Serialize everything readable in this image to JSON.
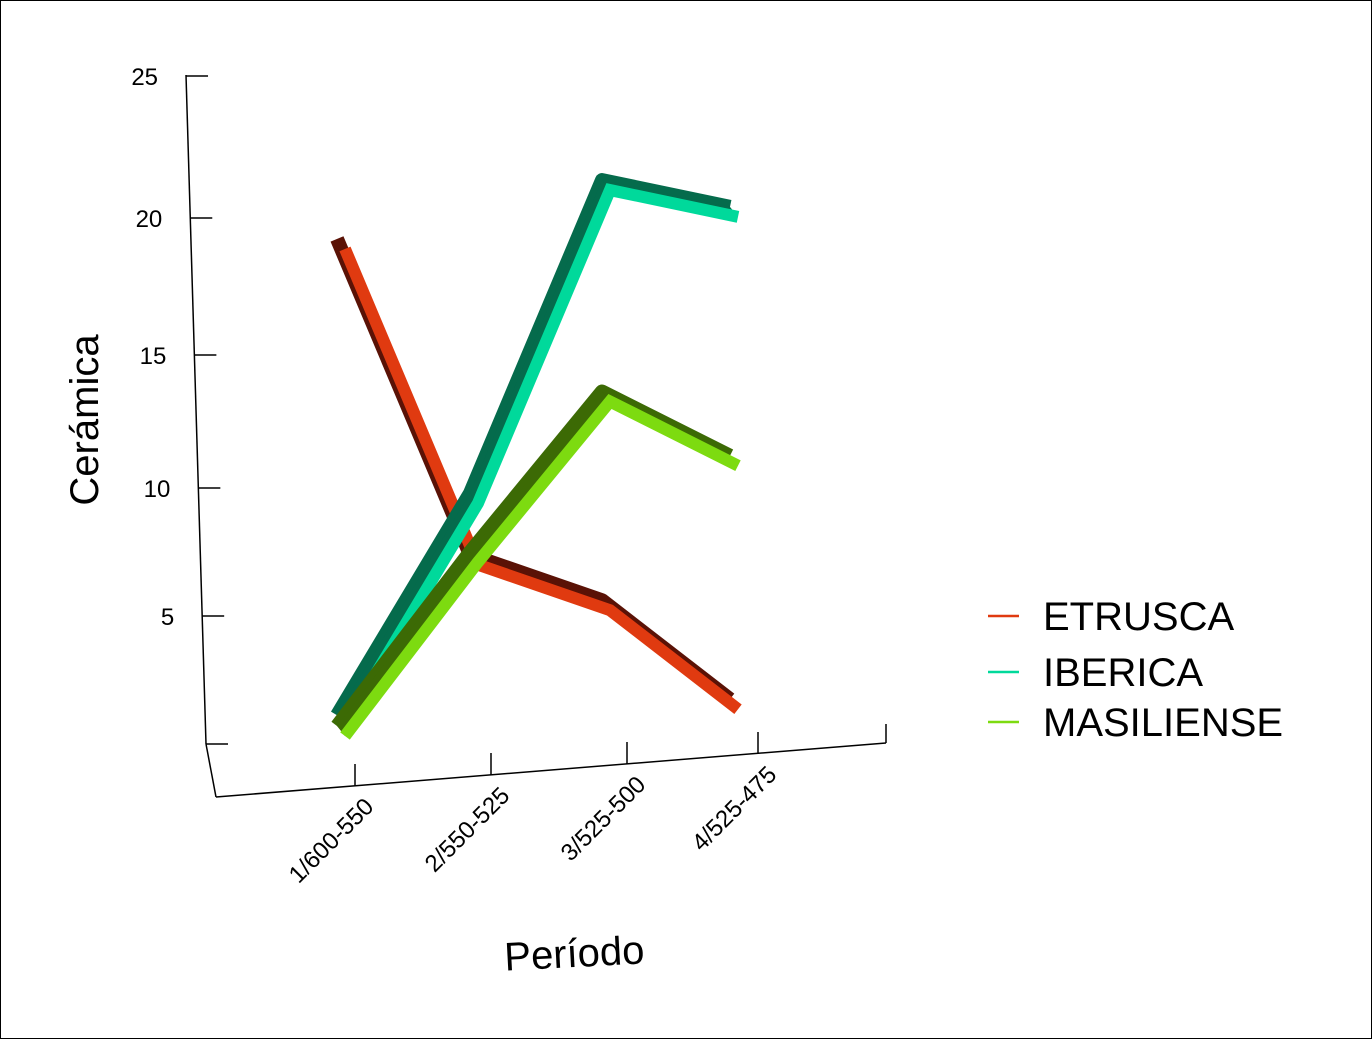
{
  "chart_data": {
    "type": "line",
    "style": "3d-ribbon",
    "xlabel": "Período",
    "ylabel": "Cerámica",
    "categories": [
      "1/600-550",
      "2/550-525",
      "3/525-500",
      "4/525-475"
    ],
    "yticks": [
      5,
      10,
      15,
      20,
      25
    ],
    "ylim": [
      0,
      25
    ],
    "legend_position": "right",
    "grid": false,
    "series": [
      {
        "name": "ETRUSCA",
        "values": [
          18.5,
          6.7,
          5.0,
          1.3
        ],
        "color": "#e03a10",
        "shade": "#5a1206"
      },
      {
        "name": "IBERICA",
        "values": [
          0.7,
          9.0,
          20.7,
          19.7
        ],
        "color": "#00d99b",
        "shade": "#056b4c"
      },
      {
        "name": "MASILIENSE",
        "values": [
          0.3,
          6.8,
          12.8,
          10.4
        ],
        "color": "#7ddb10",
        "shade": "#3c6a05"
      }
    ]
  }
}
